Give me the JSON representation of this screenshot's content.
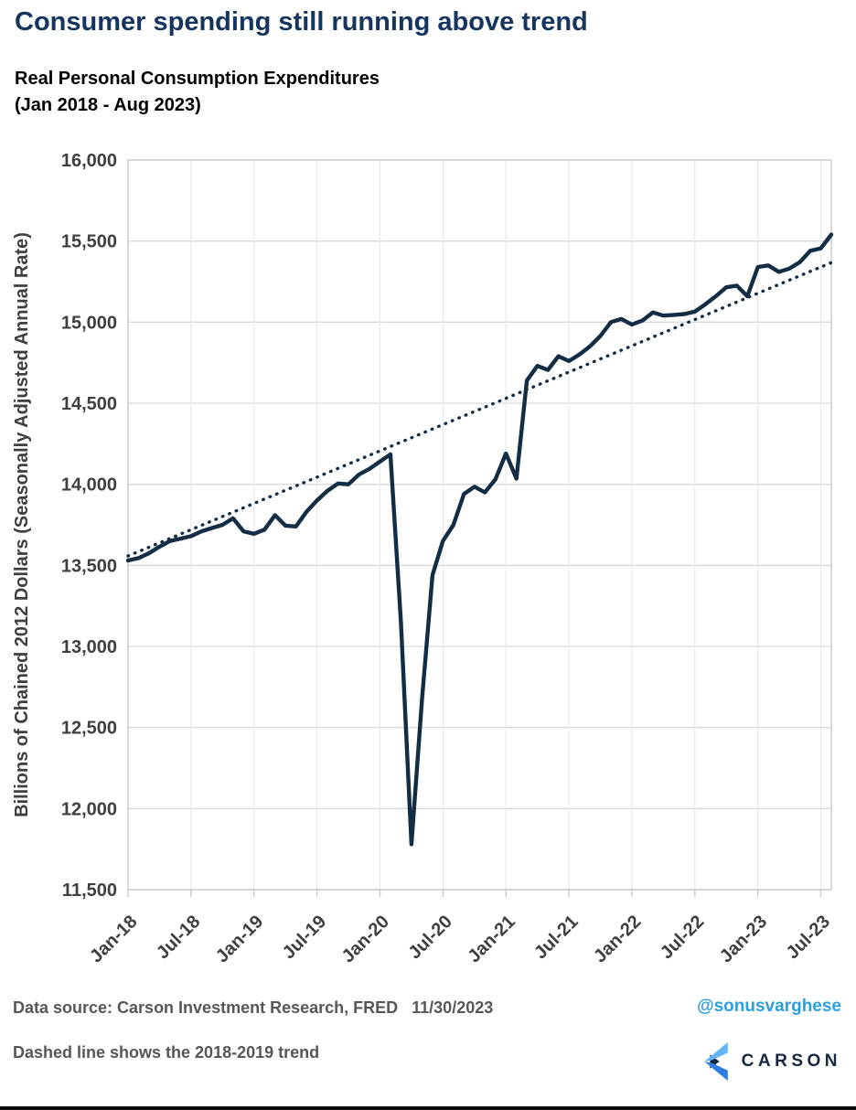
{
  "page": {
    "title": "Consumer spending still running above trend",
    "subtitle_line1": "Real Personal Consumption Expenditures",
    "subtitle_line2": "(Jan 2018 - Aug 2023)"
  },
  "footer": {
    "source": "Data source: Carson Investment Research, FRED   11/30/2023",
    "handle": "@sonusvarghese",
    "note": "Dashed line shows the 2018-2019 trend",
    "logo_text": "CARSON"
  },
  "colors": {
    "title_navy": "#16355e",
    "line_navy": "#132d45",
    "axis_text_gray": "#3f3f3f",
    "footer_gray": "#575757",
    "handle_blue": "#2b9fe0",
    "gridline_gray": "#d9d9d9",
    "vgrid_gray": "#e9e9e9",
    "border_gray": "#c9c9c9",
    "logo_light_blue": "#62b5f9",
    "logo_mid_blue": "#2f7de1",
    "logo_dark_navy": "#0d2740"
  },
  "chart_data": {
    "type": "line",
    "title": "Consumer spending still running above trend",
    "subtitle": "Real Personal Consumption Expenditures (Jan 2018 - Aug 2023)",
    "xlabel": "",
    "ylabel": "Billions of Chained 2012 Dollars (Seasonally Adjusted Annual Rate)",
    "ylim": [
      11500,
      16000
    ],
    "ytick_step": 500,
    "grid": true,
    "legend": "none",
    "xtick_labels": [
      "Jan-18",
      "Jul-18",
      "Jan-19",
      "Jul-19",
      "Jan-20",
      "Jul-20",
      "Jan-21",
      "Jul-21",
      "Jan-22",
      "Jul-22",
      "Jan-23",
      "Jul-23"
    ],
    "x": [
      "Jan-18",
      "Feb-18",
      "Mar-18",
      "Apr-18",
      "May-18",
      "Jun-18",
      "Jul-18",
      "Aug-18",
      "Sep-18",
      "Oct-18",
      "Nov-18",
      "Dec-18",
      "Jan-19",
      "Feb-19",
      "Mar-19",
      "Apr-19",
      "May-19",
      "Jun-19",
      "Jul-19",
      "Aug-19",
      "Sep-19",
      "Oct-19",
      "Nov-19",
      "Dec-19",
      "Jan-20",
      "Feb-20",
      "Mar-20",
      "Apr-20",
      "May-20",
      "Jun-20",
      "Jul-20",
      "Aug-20",
      "Sep-20",
      "Oct-20",
      "Nov-20",
      "Dec-20",
      "Jan-21",
      "Feb-21",
      "Mar-21",
      "Apr-21",
      "May-21",
      "Jun-21",
      "Jul-21",
      "Aug-21",
      "Sep-21",
      "Oct-21",
      "Nov-21",
      "Dec-21",
      "Jan-22",
      "Feb-22",
      "Mar-22",
      "Apr-22",
      "May-22",
      "Jun-22",
      "Jul-22",
      "Aug-22",
      "Sep-22",
      "Oct-22",
      "Nov-22",
      "Dec-22",
      "Jan-23",
      "Feb-23",
      "Mar-23",
      "Apr-23",
      "May-23",
      "Jun-23",
      "Jul-23",
      "Aug-23"
    ],
    "series": [
      {
        "name": "Real Personal Consumption Expenditures",
        "style": "solid",
        "values": [
          13530,
          13545,
          13575,
          13615,
          13650,
          13665,
          13680,
          13710,
          13730,
          13750,
          13790,
          13710,
          13695,
          13720,
          13810,
          13745,
          13740,
          13830,
          13900,
          13960,
          14005,
          14000,
          14060,
          14095,
          14140,
          14185,
          13150,
          11780,
          12670,
          13440,
          13650,
          13750,
          13940,
          13985,
          13950,
          14030,
          14190,
          14035,
          14640,
          14730,
          14705,
          14790,
          14760,
          14800,
          14850,
          14915,
          15000,
          15020,
          14985,
          15010,
          15060,
          15040,
          15045,
          15050,
          15065,
          15110,
          15160,
          15215,
          15225,
          15160,
          15340,
          15350,
          15310,
          15330,
          15370,
          15440,
          15455,
          15540
        ]
      },
      {
        "name": "2018-2019 trend (dashed)",
        "style": "dotted",
        "shape": "linear",
        "start_value": 13558,
        "end_value": 15367
      }
    ]
  }
}
